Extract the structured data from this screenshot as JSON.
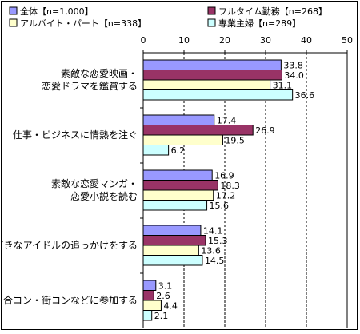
{
  "chart_data": {
    "type": "bar",
    "orientation": "horizontal",
    "xlim": [
      0,
      50
    ],
    "x_ticks": [
      "0",
      "10",
      "20",
      "30",
      "40",
      "50"
    ],
    "grid": "vertical-dashed",
    "legend_position": "top",
    "categories": [
      [
        "素敵な恋愛映画・",
        "恋愛ドラマを鑑賞する"
      ],
      [
        "仕事・ビジネスに情熱を注ぐ"
      ],
      [
        "素敵な恋愛マンガ・",
        "恋愛小説を読む"
      ],
      [
        "好きなアイドルの追っかけをする"
      ],
      [
        "合コン・街コンなどに参加する"
      ]
    ],
    "series": [
      {
        "name": "全体【n=1,000】",
        "color": "#9999ff",
        "values": [
          33.8,
          17.4,
          16.9,
          14.1,
          3.1
        ]
      },
      {
        "name": "フルタイム勤務【n=268】",
        "color": "#993366",
        "values": [
          34.0,
          26.9,
          18.3,
          15.3,
          2.6
        ]
      },
      {
        "name": "アルバイト・パート【n=338】",
        "color": "#ffffcc",
        "values": [
          31.1,
          19.5,
          17.2,
          13.6,
          4.4
        ]
      },
      {
        "name": "専業主婦【n=289】",
        "color": "#ccffff",
        "values": [
          36.6,
          6.2,
          15.6,
          14.5,
          2.1
        ]
      }
    ]
  }
}
